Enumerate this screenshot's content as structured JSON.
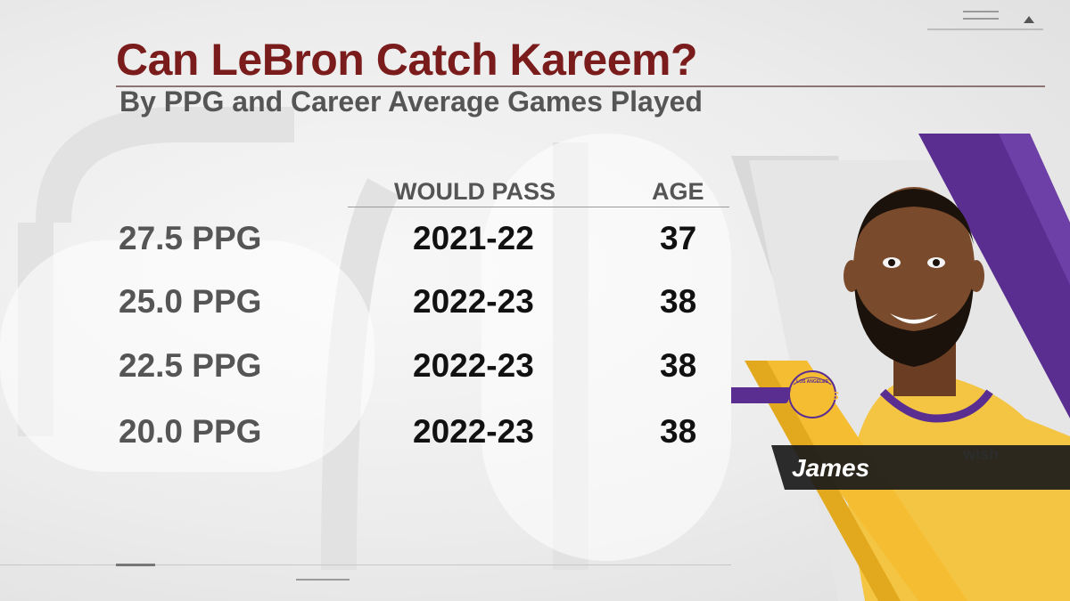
{
  "graphic": {
    "title": "Can LeBron Catch Kareem?",
    "subtitle": "By PPG and Career Average Games Played"
  },
  "table": {
    "headers": {
      "pass": "WOULD PASS",
      "age": "AGE"
    },
    "rows": [
      {
        "ppg": "27.5 PPG",
        "season": "2021-22",
        "age": "37"
      },
      {
        "ppg": "25.0 PPG",
        "season": "2022-23",
        "age": "38"
      },
      {
        "ppg": "22.5 PPG",
        "season": "2022-23",
        "age": "38"
      },
      {
        "ppg": "20.0 PPG",
        "season": "2022-23",
        "age": "38"
      }
    ]
  },
  "player": {
    "name": "James",
    "team_logo_text": "LAKERS",
    "team_logo_subtext": "LOS ANGELES",
    "jersey_patch": "wish"
  },
  "colors": {
    "title": "#7a1c1c",
    "lakers_gold": "#f5bd32",
    "lakers_purple": "#5a2d91"
  }
}
